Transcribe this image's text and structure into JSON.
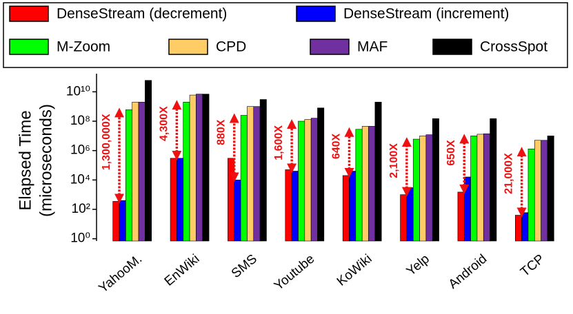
{
  "chart_data": {
    "type": "bar",
    "y_label": [
      "Elapsed Time",
      "(microseconds)"
    ],
    "log_scale": true,
    "categories": [
      "YahooM.",
      "EnWiki",
      "SMS",
      "Youtube",
      "KoWiki",
      "Yelp",
      "Android",
      "TCP"
    ],
    "series": [
      {
        "name": "DenseStream (decrement)",
        "color": "#ff0000",
        "values": [
          350,
          300000,
          300000,
          50000,
          20000,
          1000,
          1500,
          40
        ]
      },
      {
        "name": "DenseStream (increment)",
        "color": "#0000ff",
        "values": [
          400,
          300000,
          10000,
          40000,
          40000,
          3000,
          16000,
          60
        ]
      },
      {
        "name": "M-Zoom",
        "color": "#00ff00",
        "values": [
          600000000,
          2000000000,
          250000000,
          100000000,
          28000000,
          6000000,
          10000000,
          1300000
        ]
      },
      {
        "name": "CPD",
        "color": "#ffcc66",
        "values": [
          2000000000,
          6000000000,
          1000000000,
          130000000,
          45000000,
          10000000,
          13000000,
          5000000
        ]
      },
      {
        "name": "MAF",
        "color": "#7030a0",
        "values": [
          2000000000,
          7000000000,
          1000000000,
          160000000,
          45000000,
          12000000,
          14000000,
          5000000
        ]
      },
      {
        "name": "CrossSpot",
        "color": "#000000",
        "values": [
          60000000000,
          7000000000,
          3000000000,
          800000000,
          2000000000,
          150000000,
          150000000,
          10000000
        ]
      }
    ],
    "annotations": [
      "1,300,000X",
      "4,300X",
      "880X",
      "1,600X",
      "640X",
      "2,100X",
      "650X",
      "21,000X"
    ],
    "annotation_color": "#ee1111",
    "ylim": [
      0.7,
      100000000000
    ],
    "yticks": [
      {
        "value": 1,
        "label": "10⁰"
      },
      {
        "value": 100,
        "label": "10²"
      },
      {
        "value": 10000,
        "label": "10⁴"
      },
      {
        "value": 1000000,
        "label": "10⁶"
      },
      {
        "value": 100000000,
        "label": "10⁸"
      },
      {
        "value": 10000000000,
        "label": "10¹⁰"
      }
    ]
  }
}
